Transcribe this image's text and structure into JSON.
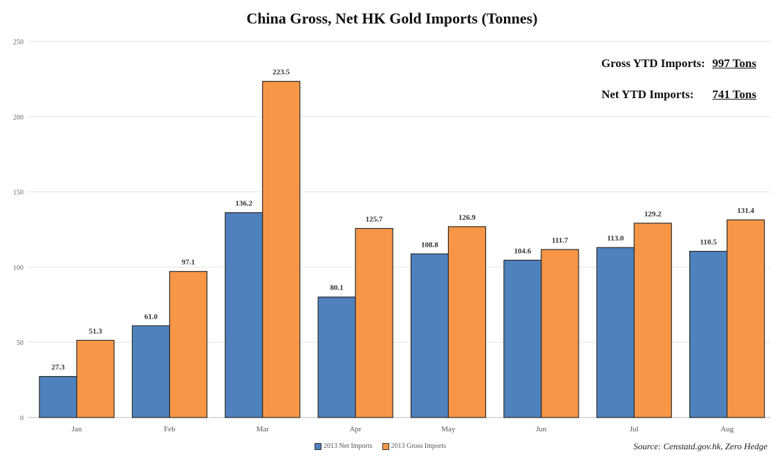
{
  "chart_data": {
    "type": "bar",
    "title": "China Gross, Net HK Gold Imports (Tonnes)",
    "xlabel": "",
    "ylabel": "",
    "ylim": [
      0,
      250
    ],
    "yticks": [
      "0",
      "50",
      "100",
      "150",
      "200",
      "250"
    ],
    "grid": true,
    "categories": [
      "Jan",
      "Feb",
      "Mar",
      "Apr",
      "May",
      "Jun",
      "Jul",
      "Aug"
    ],
    "series": [
      {
        "name": "2013 Net Imports",
        "color": "#4f81bd",
        "values": [
          27.3,
          61.0,
          136.2,
          80.1,
          108.8,
          104.6,
          113.0,
          110.5
        ],
        "labels": [
          "27.3",
          "61.0",
          "136.2",
          "80.1",
          "108.8",
          "104.6",
          "113.0",
          "110.5"
        ]
      },
      {
        "name": "2013 Gross Imports",
        "color": "#f79646",
        "values": [
          51.3,
          97.1,
          223.5,
          125.7,
          126.9,
          111.7,
          129.2,
          131.4
        ],
        "labels": [
          "51.3",
          "97.1",
          "223.5",
          "125.7",
          "126.9",
          "111.7",
          "129.2",
          "131.4"
        ]
      }
    ],
    "legend_position": "bottom",
    "annotations": [
      {
        "label": "Gross YTD Imports:",
        "value": "997 Tons"
      },
      {
        "label": "Net YTD Imports:",
        "value": "741 Tons"
      }
    ],
    "source": "Source: Censtatd.gov.hk, Zero Hedge"
  }
}
